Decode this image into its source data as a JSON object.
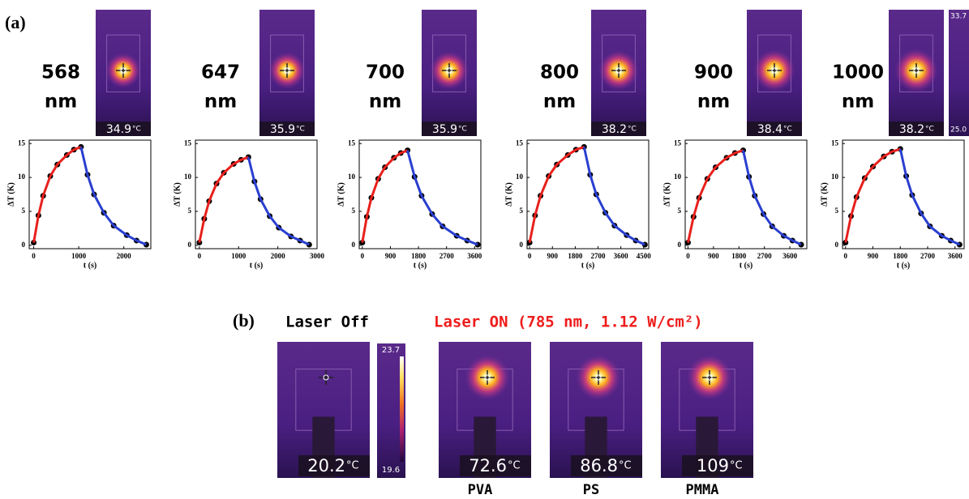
{
  "panel_a": {
    "label": "(a)",
    "colorbar": {
      "max": "33.7",
      "min": "25.0"
    }
  },
  "chart_data": [
    {
      "type": "line",
      "title_lines": [
        "568",
        "nm"
      ],
      "thermal_reading": "34.9",
      "thermal_unit": "°C",
      "xlabel": "t (s)",
      "ylabel": "ΔT (K)",
      "xlim": [
        -100,
        2600
      ],
      "xticks": [
        0,
        1000,
        2000
      ],
      "ylim": [
        -0.5,
        15.5
      ],
      "yticks": [
        0,
        5,
        10,
        15
      ],
      "x": [
        0,
        105,
        210,
        368,
        525,
        735,
        893,
        1050,
        1195,
        1340,
        1558,
        1775,
        2065,
        2283,
        2500
      ],
      "series": [
        {
          "color": "#000000",
          "marker": "circle",
          "values": [
            0.4,
            4.4,
            7.3,
            10.2,
            11.9,
            13.3,
            14.1,
            14.5,
            10.4,
            7.5,
            4.8,
            2.9,
            1.5,
            0.7,
            0.1
          ]
        },
        {
          "color": "#e8201c",
          "values": [
            0.4,
            4.4,
            7.3,
            10.2,
            11.9,
            13.3,
            14.1,
            14.5,
            null,
            null,
            null,
            null,
            null,
            null,
            null
          ]
        },
        {
          "color": "#2a3fd0",
          "values": [
            null,
            null,
            null,
            null,
            null,
            null,
            null,
            14.5,
            10.4,
            7.5,
            4.8,
            2.9,
            1.5,
            0.7,
            0.1
          ]
        }
      ]
    },
    {
      "type": "line",
      "title_lines": [
        "647",
        "nm"
      ],
      "thermal_reading": "35.9",
      "thermal_unit": "°C",
      "xlabel": "t (s)",
      "ylabel": "ΔT (K)",
      "xlim": [
        -100,
        3000
      ],
      "xticks": [
        0,
        1000,
        2000,
        3000
      ],
      "ylim": [
        -0.5,
        15.5
      ],
      "yticks": [
        0,
        5,
        10,
        15
      ],
      "x": [
        0,
        125,
        250,
        438,
        625,
        875,
        1063,
        1250,
        1405,
        1560,
        1793,
        2025,
        2335,
        2568,
        2800
      ],
      "series": [
        {
          "color": "#000000",
          "marker": "circle",
          "values": [
            0.4,
            3.9,
            6.5,
            9.1,
            10.7,
            12.0,
            12.6,
            13.0,
            9.4,
            6.8,
            4.3,
            2.6,
            1.3,
            0.7,
            0.1
          ]
        },
        {
          "color": "#e8201c",
          "values": [
            0.4,
            3.9,
            6.5,
            9.1,
            10.7,
            12.0,
            12.6,
            13.0,
            null,
            null,
            null,
            null,
            null,
            null,
            null
          ]
        },
        {
          "color": "#2a3fd0",
          "values": [
            null,
            null,
            null,
            null,
            null,
            null,
            null,
            13.0,
            9.4,
            6.8,
            4.3,
            2.6,
            1.3,
            0.7,
            0.1
          ]
        }
      ]
    },
    {
      "type": "line",
      "title_lines": [
        "700",
        "nm"
      ],
      "thermal_reading": "35.9",
      "thermal_unit": "°C",
      "xlabel": "t (s)",
      "ylabel": "ΔT (K)",
      "xlim": [
        -100,
        3800
      ],
      "xticks": [
        0,
        900,
        1800,
        2700,
        3600
      ],
      "ylim": [
        -0.5,
        15.5
      ],
      "yticks": [
        0,
        5,
        10,
        15
      ],
      "x": [
        0,
        145,
        290,
        508,
        725,
        1015,
        1233,
        1450,
        1675,
        1900,
        2238,
        2575,
        3025,
        3363,
        3700
      ],
      "series": [
        {
          "color": "#000000",
          "marker": "circle",
          "values": [
            0.4,
            4.2,
            7.0,
            9.8,
            11.5,
            12.9,
            13.6,
            14.0,
            10.1,
            7.3,
            4.6,
            2.8,
            1.4,
            0.7,
            0.1
          ]
        },
        {
          "color": "#e8201c",
          "values": [
            0.4,
            4.2,
            7.0,
            9.8,
            11.5,
            12.9,
            13.6,
            14.0,
            null,
            null,
            null,
            null,
            null,
            null,
            null
          ]
        },
        {
          "color": "#2a3fd0",
          "values": [
            null,
            null,
            null,
            null,
            null,
            null,
            null,
            14.0,
            10.1,
            7.3,
            4.6,
            2.8,
            1.4,
            0.7,
            0.1
          ]
        }
      ]
    },
    {
      "type": "line",
      "title_lines": [
        "800",
        "nm"
      ],
      "thermal_reading": "38.2",
      "thermal_unit": "°C",
      "xlabel": "t (s)",
      "ylabel": "ΔT (K)",
      "xlim": [
        -100,
        4700
      ],
      "xticks": [
        0,
        900,
        1800,
        2700,
        3600,
        4500
      ],
      "ylim": [
        -0.5,
        15.5
      ],
      "yticks": [
        0,
        5,
        10,
        15
      ],
      "x": [
        0,
        215,
        430,
        753,
        1075,
        1505,
        1828,
        2150,
        2390,
        2630,
        2990,
        3350,
        3830,
        4190,
        4550
      ],
      "series": [
        {
          "color": "#000000",
          "marker": "circle",
          "values": [
            0.4,
            4.4,
            7.3,
            10.2,
            11.9,
            13.3,
            14.1,
            14.5,
            10.4,
            7.5,
            4.8,
            2.9,
            1.5,
            0.7,
            0.1
          ]
        },
        {
          "color": "#e8201c",
          "values": [
            0.4,
            4.4,
            7.3,
            10.2,
            11.9,
            13.3,
            14.1,
            14.5,
            null,
            null,
            null,
            null,
            null,
            null,
            null
          ]
        },
        {
          "color": "#2a3fd0",
          "values": [
            null,
            null,
            null,
            null,
            null,
            null,
            null,
            14.5,
            10.4,
            7.5,
            4.8,
            2.9,
            1.5,
            0.7,
            0.1
          ]
        }
      ]
    },
    {
      "type": "line",
      "title_lines": [
        "900",
        "nm"
      ],
      "thermal_reading": "38.4",
      "thermal_unit": "°C",
      "xlabel": "t (s)",
      "ylabel": "ΔT (K)",
      "xlim": [
        -100,
        4200
      ],
      "xticks": [
        0,
        900,
        1800,
        2700,
        3600
      ],
      "ylim": [
        -0.5,
        15.5
      ],
      "yticks": [
        0,
        5,
        10,
        15
      ],
      "x": [
        0,
        195,
        390,
        683,
        975,
        1365,
        1658,
        1950,
        2155,
        2360,
        2668,
        2975,
        3385,
        3693,
        4000
      ],
      "series": [
        {
          "color": "#000000",
          "marker": "circle",
          "values": [
            0.4,
            4.2,
            7.0,
            9.8,
            11.5,
            12.9,
            13.6,
            14.0,
            10.1,
            7.3,
            4.6,
            2.8,
            1.4,
            0.7,
            0.1
          ]
        },
        {
          "color": "#e8201c",
          "values": [
            0.4,
            4.2,
            7.0,
            9.8,
            11.5,
            12.9,
            13.6,
            14.0,
            null,
            null,
            null,
            null,
            null,
            null,
            null
          ]
        },
        {
          "color": "#2a3fd0",
          "values": [
            null,
            null,
            null,
            null,
            null,
            null,
            null,
            14.0,
            10.1,
            7.3,
            4.6,
            2.8,
            1.4,
            0.7,
            0.1
          ]
        }
      ]
    },
    {
      "type": "line",
      "title_lines": [
        "1000",
        "nm"
      ],
      "thermal_reading": "38.2",
      "thermal_unit": "°C",
      "xlabel": "t (s)",
      "ylabel": "ΔT (K)",
      "xlim": [
        -100,
        3900
      ],
      "xticks": [
        0,
        900,
        1800,
        2700,
        3600
      ],
      "ylim": [
        -0.5,
        15.5
      ],
      "yticks": [
        0,
        5,
        10,
        15
      ],
      "x": [
        0,
        180,
        360,
        630,
        900,
        1260,
        1530,
        1800,
        1995,
        2190,
        2483,
        2775,
        3165,
        3458,
        3750
      ],
      "series": [
        {
          "color": "#000000",
          "marker": "circle",
          "values": [
            0.4,
            4.3,
            7.1,
            9.9,
            11.6,
            13.1,
            13.8,
            14.2,
            10.2,
            7.4,
            4.7,
            2.8,
            1.4,
            0.7,
            0.1
          ]
        },
        {
          "color": "#e8201c",
          "values": [
            0.4,
            4.3,
            7.1,
            9.9,
            11.6,
            13.1,
            13.8,
            14.2,
            null,
            null,
            null,
            null,
            null,
            null,
            null
          ]
        },
        {
          "color": "#2a3fd0",
          "values": [
            null,
            null,
            null,
            null,
            null,
            null,
            null,
            14.2,
            10.2,
            7.4,
            4.7,
            2.8,
            1.4,
            0.7,
            0.1
          ]
        }
      ]
    }
  ],
  "panel_b": {
    "label": "(b)",
    "off_title": "Laser Off",
    "on_title": "Laser ON (785 nm, 1.12 W/cm²)",
    "colorbar": {
      "max": "23.7",
      "min": "19.6"
    },
    "images": [
      {
        "reading": "20.2",
        "unit": "°C"
      },
      {
        "reading": "72.6",
        "unit": "°C",
        "label": "PVA"
      },
      {
        "reading": "86.8",
        "unit": "°C",
        "label": "PS"
      },
      {
        "reading": "109",
        "unit": "°C",
        "label": "PMMA"
      }
    ]
  }
}
